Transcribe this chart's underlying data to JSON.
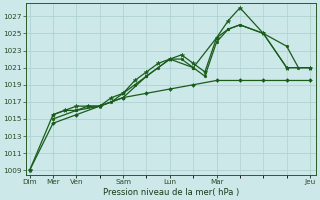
{
  "bg_color": "#cce8e8",
  "grid_color": "#aacece",
  "line_color": "#1a5c1a",
  "title": "Pression niveau de la mer( hPa )",
  "yticks": [
    1009,
    1011,
    1013,
    1015,
    1017,
    1019,
    1021,
    1023,
    1025,
    1027
  ],
  "xlabels_shown": [
    "Dim",
    "Mer",
    "Ven",
    "Sam",
    "Lun",
    "Mar",
    "Jeu"
  ],
  "xlabels_pos": [
    0,
    2,
    4,
    8,
    12,
    16,
    24
  ],
  "line1_flat": {
    "x": [
      0,
      2,
      4,
      6,
      8,
      10,
      12,
      14,
      16,
      18,
      20,
      22,
      24
    ],
    "y": [
      1009,
      1014.5,
      1015.5,
      1016.5,
      1017.5,
      1018.0,
      1018.5,
      1019.0,
      1019.5,
      1019.5,
      1019.5,
      1019.5,
      1019.5
    ]
  },
  "line2_main": {
    "x": [
      0,
      2,
      3,
      4,
      5,
      6,
      7,
      8,
      9,
      10,
      11,
      12,
      13,
      14,
      15,
      16,
      17,
      18,
      20,
      22,
      24
    ],
    "y": [
      1009,
      1015.5,
      1016,
      1016.5,
      1016.5,
      1016.5,
      1017.5,
      1018,
      1019.5,
      1020.5,
      1021.5,
      1022,
      1022.5,
      1021.5,
      1020.5,
      1024.5,
      1026.5,
      1028,
      1025,
      1021,
      1021
    ]
  },
  "line3": {
    "x": [
      2,
      3,
      4,
      5,
      6,
      7,
      8,
      9,
      10,
      11,
      12,
      13,
      14,
      15,
      16,
      17,
      18,
      20,
      22,
      24
    ],
    "y": [
      1015.5,
      1016,
      1016,
      1016.5,
      1016.5,
      1017,
      1018,
      1019,
      1020,
      1021,
      1022,
      1022,
      1021,
      1020,
      1024,
      1025.5,
      1026,
      1025,
      1021,
      1021
    ]
  },
  "line4": {
    "x": [
      2,
      4,
      6,
      8,
      10,
      12,
      14,
      16,
      17,
      18,
      20,
      22,
      23,
      24
    ],
    "y": [
      1015,
      1016,
      1016.5,
      1017.5,
      1020,
      1022,
      1021,
      1024.5,
      1025.5,
      1026,
      1025,
      1023.5,
      1021,
      1021
    ]
  },
  "ylim": [
    1008.5,
    1028.5
  ],
  "xlim": [
    -0.3,
    24.5
  ]
}
